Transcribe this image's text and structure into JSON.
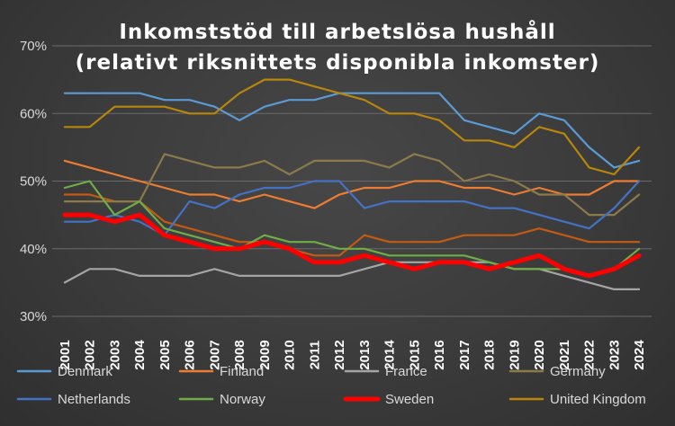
{
  "chart_data": {
    "type": "line",
    "title": "Inkomststöd till arbetslösa hushåll",
    "subtitle": "(relativt riksnittets disponibla inkomster)",
    "xlabel": "",
    "ylabel": "",
    "x": [
      "2001",
      "2002",
      "2003",
      "2004",
      "2005",
      "2006",
      "2007",
      "2008",
      "2009",
      "2010",
      "2011",
      "2012",
      "2013",
      "2014",
      "2015",
      "2016",
      "2017",
      "2018",
      "2019",
      "2020",
      "2021",
      "2022",
      "2023",
      "2024"
    ],
    "yticks": [
      "30%",
      "40%",
      "50%",
      "60%",
      "70%"
    ],
    "ylim": [
      30,
      70
    ],
    "grid": "horizontal",
    "legend_position": "bottom",
    "series": [
      {
        "name": "Denmark",
        "color": "#5b9bd5",
        "width": 2.2,
        "values": [
          63,
          63,
          63,
          63,
          62,
          62,
          61,
          59,
          61,
          62,
          62,
          63,
          63,
          63,
          63,
          63,
          59,
          58,
          57,
          60,
          59,
          55,
          52,
          53
        ]
      },
      {
        "name": "Finland",
        "color": "#ed7d31",
        "width": 2.2,
        "values": [
          53,
          52,
          51,
          50,
          49,
          48,
          48,
          47,
          48,
          47,
          46,
          48,
          49,
          49,
          50,
          50,
          49,
          49,
          48,
          49,
          48,
          48,
          50,
          50
        ]
      },
      {
        "name": "France",
        "color": "#a5a5a5",
        "width": 2.2,
        "values": [
          35,
          37,
          37,
          36,
          36,
          36,
          37,
          36,
          36,
          36,
          36,
          36,
          37,
          38,
          38,
          38,
          38,
          38,
          37,
          37,
          36,
          35,
          34,
          34
        ]
      },
      {
        "name": "Germany",
        "color": "#8c7a4a",
        "width": 2.2,
        "values": [
          47,
          47,
          47,
          47,
          54,
          53,
          52,
          52,
          53,
          51,
          53,
          53,
          53,
          52,
          54,
          53,
          50,
          51,
          50,
          48,
          48,
          45,
          45,
          48
        ]
      },
      {
        "name": "Netherlands",
        "color": "#4472c4",
        "width": 2.2,
        "values": [
          44,
          44,
          45,
          44,
          42,
          47,
          46,
          48,
          49,
          49,
          50,
          50,
          46,
          47,
          47,
          47,
          47,
          46,
          46,
          45,
          44,
          43,
          46,
          50
        ]
      },
      {
        "name": "Norway",
        "color": "#70ad47",
        "width": 2.2,
        "values": [
          49,
          50,
          45,
          47,
          43,
          42,
          41,
          40,
          42,
          41,
          41,
          40,
          40,
          39,
          39,
          39,
          39,
          38,
          37,
          37,
          37,
          36,
          37,
          40
        ]
      },
      {
        "name": "Sweden",
        "color": "#ff0000",
        "width": 5,
        "values": [
          45,
          45,
          44,
          45,
          42,
          41,
          40,
          40,
          41,
          40,
          38,
          38,
          39,
          38,
          37,
          38,
          38,
          37,
          38,
          39,
          37,
          36,
          37,
          39
        ]
      },
      {
        "name": "United Kingdom",
        "color": "#b8860b",
        "width": 2.2,
        "values": [
          58,
          58,
          61,
          61,
          61,
          60,
          60,
          63,
          65,
          65,
          64,
          63,
          62,
          60,
          60,
          59,
          56,
          56,
          55,
          58,
          57,
          52,
          51,
          55
        ]
      }
    ],
    "extra_series": [
      {
        "color": "#c55a11",
        "width": 2.2,
        "values": [
          48,
          48,
          47,
          47,
          44,
          43,
          42,
          41,
          41,
          40,
          39,
          39,
          42,
          41,
          41,
          41,
          42,
          42,
          42,
          43,
          42,
          41,
          41,
          41
        ]
      }
    ]
  }
}
